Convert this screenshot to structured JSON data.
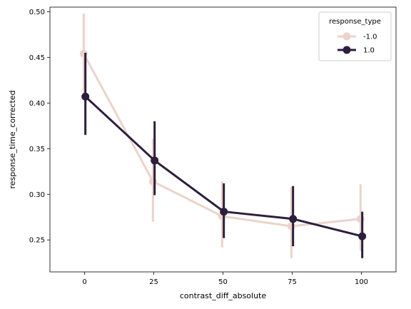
{
  "chart_data": {
    "type": "line",
    "xlabel": "contrast_diff_absolute",
    "ylabel": "response_time_corrected",
    "categories": [
      "0",
      "25",
      "50",
      "75",
      "100"
    ],
    "xlim": [
      -0.5,
      4.5
    ],
    "ylim": [
      0.215,
      0.505
    ],
    "yticks": [
      0.25,
      0.3,
      0.35,
      0.4,
      0.45,
      0.5
    ],
    "ytick_labels": [
      "0.25",
      "0.30",
      "0.35",
      "0.40",
      "0.45",
      "0.50"
    ],
    "grid": false,
    "legend": {
      "title": "response_type",
      "placement": "top-right"
    },
    "series": [
      {
        "name": "-1.0",
        "color": "#ecd3ca",
        "values": [
          0.454,
          0.314,
          0.276,
          0.265,
          0.273
        ],
        "ci_low": [
          0.41,
          0.27,
          0.242,
          0.23,
          0.238
        ],
        "ci_high": [
          0.498,
          0.361,
          0.314,
          0.308,
          0.311
        ]
      },
      {
        "name": "1.0",
        "color": "#2d1e3e",
        "values": [
          0.407,
          0.337,
          0.281,
          0.273,
          0.254
        ],
        "ci_low": [
          0.365,
          0.299,
          0.252,
          0.243,
          0.23
        ],
        "ci_high": [
          0.455,
          0.38,
          0.312,
          0.309,
          0.281
        ]
      }
    ]
  }
}
